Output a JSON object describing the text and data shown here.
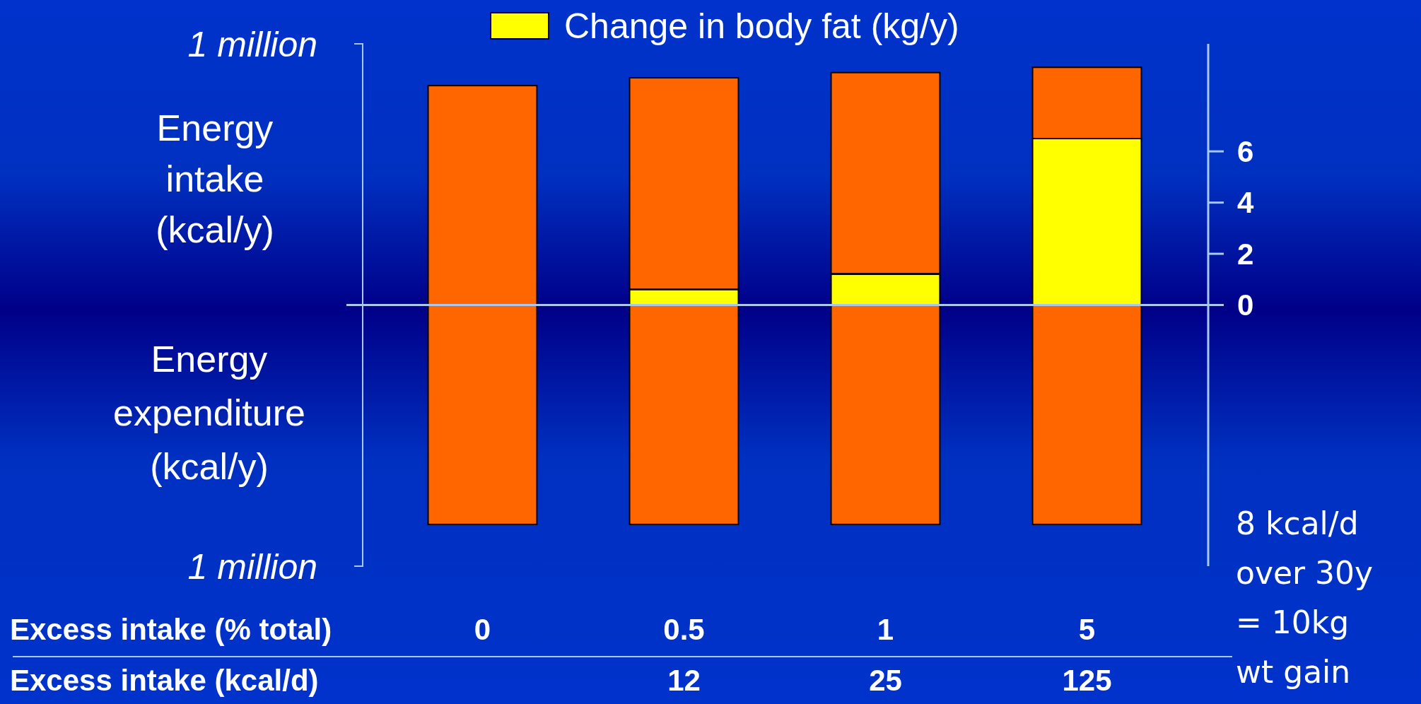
{
  "chart_data": {
    "type": "bar",
    "xlabel": "Excess intake (% total)",
    "ylabel": "Energy intake (kcal/y)",
    "categories": [
      "0",
      "0.5",
      "1",
      "5"
    ],
    "series": [
      {
        "color": "#ff6600",
        "base": [
          0,
          60000,
          120000,
          630000
        ],
        "values": [
          840000,
          810000,
          770000,
          280000
        ]
      },
      {
        "color": "#ff6600",
        "values": [
          -840000,
          -840000,
          -840000,
          -840000
        ]
      },
      {
        "name": "Change in body fat (kg/y)",
        "color": "#ffff00",
        "axis": "y2",
        "values": [
          0,
          0.6,
          1.2,
          6.5
        ]
      }
    ],
    "ylim": [
      -1000000,
      1000000
    ],
    "yticks": [
      {
        "value": 1000000,
        "label": "1 million"
      },
      {
        "value": -1000000,
        "label": "1 million"
      }
    ],
    "y2lim": [
      -10.2,
      10.2
    ],
    "y2ticks": [
      0,
      2,
      4,
      6
    ],
    "ref_lines": [
      {
        "axis": "y",
        "value": 0,
        "color": "#a8c8f0"
      }
    ],
    "legend": "top",
    "grid": false,
    "stacked": true,
    "annotations": [
      "Energy expenditure (kcal/y)",
      "Excess intake (kcal/d)",
      "12",
      "25",
      "125",
      "8 kcal/d over 30y = 10kg wt gain"
    ]
  }
}
